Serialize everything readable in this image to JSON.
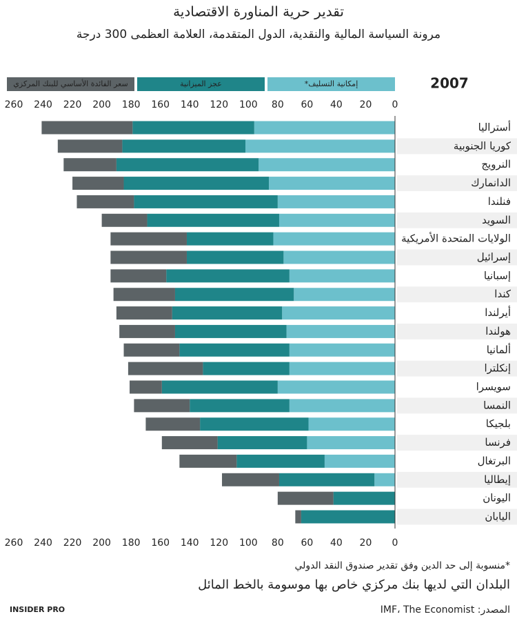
{
  "chart_data": {
    "type": "bar",
    "orientation": "horizontal",
    "stacked": true,
    "reversed": true,
    "title": "تقدير حرية المناورة الاقتصادية",
    "subtitle": "مرونة السياسة المالية والنقدية، الدول المتقدمة، العلامة العظمى 300 درجة",
    "year": "2007",
    "footnote": "*منسوبة إلى حد الدين وفق تقدير صندوق النقد الدولي",
    "note": "البلدان التي لديها بنك مركزي خاص بها موسومة بالخط المائل",
    "source": "المصدر: IMF، The Economist",
    "logo": "INSIDER PRO",
    "categories": [
      "أستراليا",
      "كوريا الجنوبية",
      "النرويج",
      "الدانمارك",
      "فنلندا",
      "السويد",
      "الولايات المتحدة الأمريكية",
      "إسرائيل",
      "إسبانيا",
      "كندا",
      "أيرلندا",
      "هولندا",
      "ألمانيا",
      "إنكلترا",
      "سويسرا",
      "النمسا",
      "بلجيكا",
      "فرنسا",
      "البرتغال",
      "إيطاليا",
      "اليونان",
      "اليابان"
    ],
    "series": [
      {
        "name": "إمكانية التسليف*",
        "color": "#6cc0cc",
        "values": [
          96,
          102,
          93,
          86,
          80,
          79,
          83,
          76,
          72,
          69,
          77,
          74,
          72,
          72,
          80,
          72,
          59,
          60,
          48,
          14,
          0,
          0
        ]
      },
      {
        "name": "عجز الميزانية",
        "color": "#1f8589",
        "values": [
          83,
          84,
          97,
          99,
          98,
          90,
          59,
          66,
          84,
          81,
          75,
          76,
          75,
          59,
          79,
          68,
          74,
          61,
          60,
          65,
          42,
          64
        ]
      },
      {
        "name": "سعر الفائدة الأساسي للبنك المركزي",
        "color": "#5c6366",
        "values": [
          62,
          44,
          36,
          35,
          39,
          31,
          52,
          52,
          38,
          42,
          38,
          38,
          38,
          51,
          22,
          38,
          37,
          38,
          39,
          39,
          38,
          4
        ]
      }
    ],
    "xlim": [
      0,
      260
    ],
    "xticks": [
      0,
      20,
      40,
      60,
      80,
      100,
      120,
      140,
      160,
      180,
      200,
      220,
      240,
      260
    ],
    "grid": false
  }
}
